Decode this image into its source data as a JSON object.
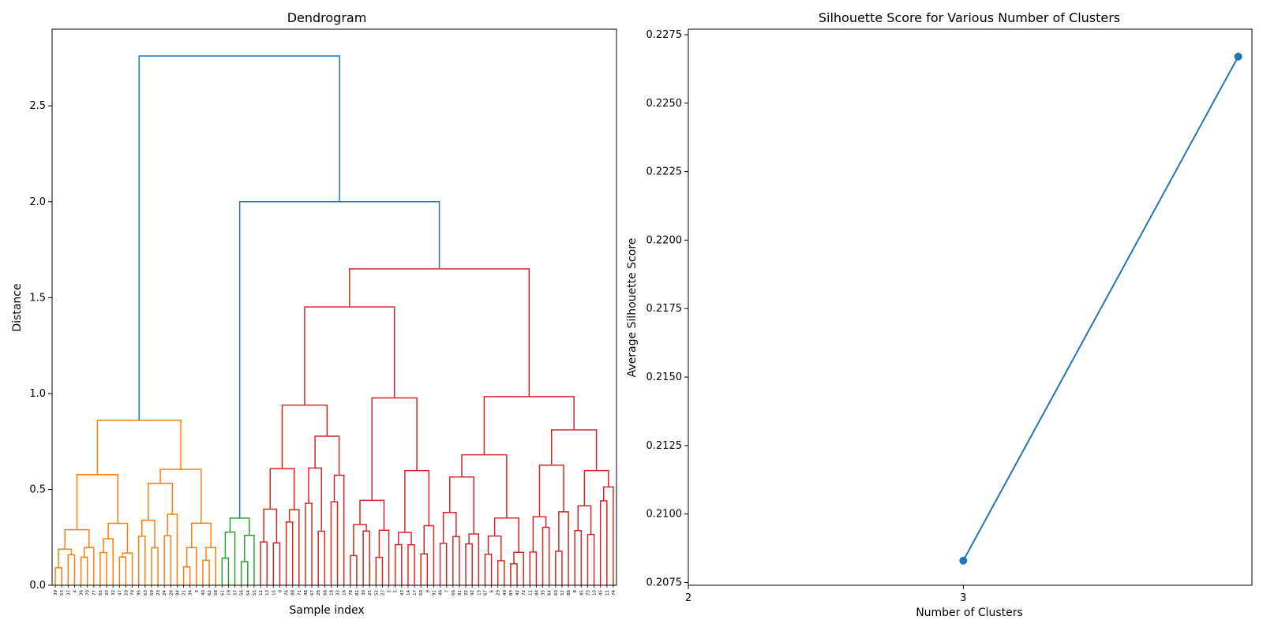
{
  "chart_data": [
    {
      "type": "dendrogram",
      "title": "Dendrogram",
      "xlabel": "Sample index",
      "ylabel": "Distance",
      "ylim": [
        0,
        2.9
      ],
      "yticks": [
        0.0,
        0.5,
        1.0,
        1.5,
        2.0,
        2.5
      ],
      "leaf_labels": [
        "39",
        "53",
        "37",
        "4",
        "36",
        "70",
        "77",
        "65",
        "20",
        "32",
        "47",
        "59",
        "79",
        "95",
        "63",
        "69",
        "23",
        "24",
        "26",
        "94",
        "21",
        "34",
        "3",
        "40",
        "62",
        "58",
        "61",
        "19",
        "57",
        "56",
        "54",
        "55",
        "12",
        "13",
        "15",
        "0",
        "76",
        "88",
        "71",
        "48",
        "67",
        "28",
        "68",
        "18",
        "33",
        "16",
        "78",
        "82",
        "30",
        "25",
        "52",
        "27",
        "2",
        "5",
        "43",
        "14",
        "17",
        "50",
        "9",
        "91",
        "46",
        "7",
        "66",
        "81",
        "22",
        "92",
        "13",
        "67",
        "6",
        "29",
        "49",
        "83",
        "42",
        "72",
        "11",
        "84",
        "35",
        "64",
        "60",
        "51",
        "86",
        "8",
        "85",
        "73",
        "10",
        "45",
        "11",
        "74"
      ],
      "cluster_colors": [
        "#ff7f0e",
        "#2ca02c",
        "#d62728"
      ],
      "above_threshold_color": "#1f77b4",
      "upper_links": [
        {
          "heights": [
            0.86,
            2.76
          ],
          "color": "#1f77b4"
        },
        {
          "heights": [
            0.35,
            2.0
          ],
          "color": "#1f77b4"
        },
        {
          "heights": [
            1.65,
            2.0
          ],
          "color": "#1f77b4"
        }
      ],
      "cluster_root_heights": [
        0.86,
        0.35,
        1.65
      ]
    },
    {
      "type": "line",
      "title": "Silhouette Score for Various Number of Clusters",
      "xlabel": "Number of Clusters",
      "ylabel": "Average Silhouette Score",
      "x": [
        3,
        4
      ],
      "y": [
        0.2083,
        0.2267
      ],
      "xticks": [
        2,
        3
      ],
      "ylim": [
        0.2074,
        0.2277
      ],
      "yticks": [
        0.2075,
        0.21,
        0.2125,
        0.215,
        0.2175,
        0.22,
        0.2225,
        0.225,
        0.2275
      ],
      "ytick_labels": [
        "0.2075",
        "0.2100",
        "0.2125",
        "0.2150",
        "0.2175",
        "0.2200",
        "0.2225",
        "0.2250",
        "0.2275"
      ],
      "color": "#1f77b4"
    }
  ]
}
